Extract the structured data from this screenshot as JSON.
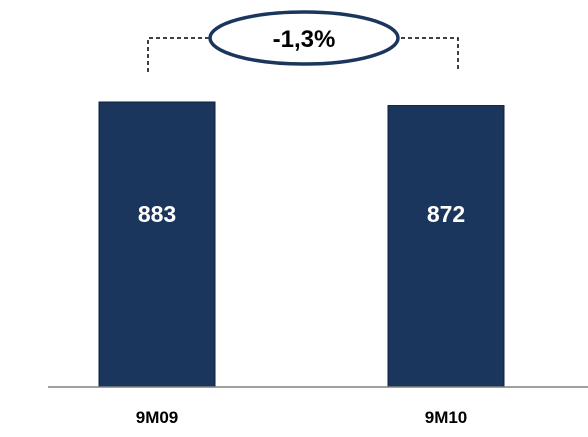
{
  "chart_data": {
    "type": "bar",
    "title": "",
    "xlabel": "",
    "ylabel": "",
    "categories": [
      "9M09",
      "9M10"
    ],
    "values": [
      883,
      872
    ],
    "data_labels": [
      "883",
      "872"
    ],
    "ylim": [
      0,
      1000
    ],
    "grid": false,
    "bar_color": "#1b365d",
    "change_annotation": "-1,3%",
    "annotation_outline_color": "#1b365d"
  }
}
